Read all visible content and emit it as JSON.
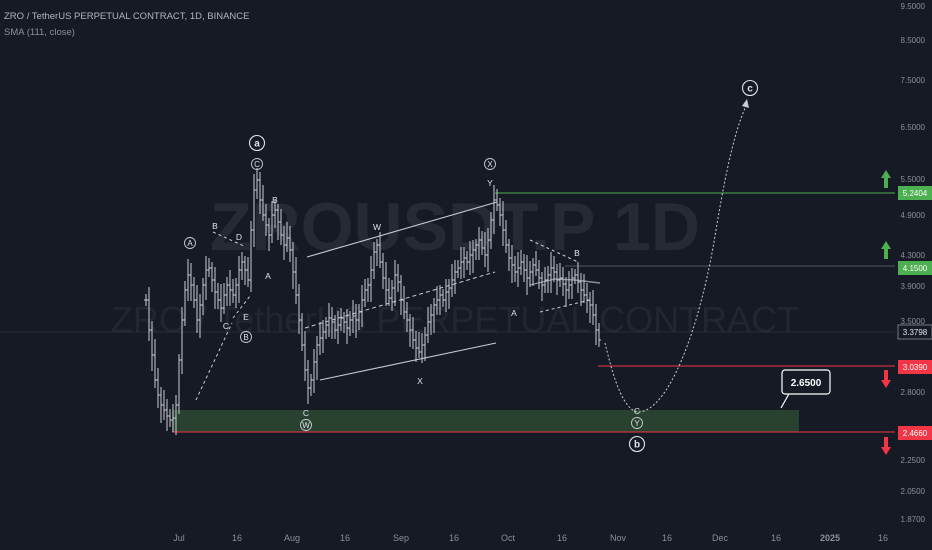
{
  "header": {
    "title": "ZRO / TetherUS PERPETUAL CONTRACT, 1D, BINANCE",
    "indicator": "SMA (111, close)"
  },
  "watermark": {
    "symbol": "ZROUSDT.P 1D",
    "description": "ZRO / TetherUS PERPETUAL CONTRACT"
  },
  "chart_data": {
    "type": "candlestick",
    "symbol": "ZROUSDT.P",
    "interval": "1D",
    "exchange": "BINANCE",
    "y_scale": "log",
    "ylim": [
      1.87,
      9.5
    ],
    "y_ticks": [
      "9.5000",
      "8.5000",
      "7.5000",
      "6.5000",
      "5.5000",
      "4.9000",
      "4.3000",
      "3.9000",
      "3.5000",
      "2.8000",
      "2.2500",
      "2.0500",
      "1.8700"
    ],
    "x_ticks": [
      "Jul",
      "16",
      "Aug",
      "16",
      "Sep",
      "16",
      "Oct",
      "16",
      "Nov",
      "16",
      "Dec",
      "16",
      "2025",
      "16"
    ],
    "last_price": "3.3798",
    "price_levels": [
      {
        "label": "5.2404",
        "value": 5.2404,
        "kind": "target",
        "color": "#4caf50"
      },
      {
        "label": "4.1500",
        "value": 4.15,
        "kind": "target",
        "color": "#4caf50"
      },
      {
        "label": "3.0390",
        "value": 3.039,
        "kind": "stop",
        "color": "#f23645"
      },
      {
        "label": "2.4660",
        "value": 2.466,
        "kind": "stop",
        "color": "#f23645"
      }
    ],
    "support_zone": {
      "low": 2.466,
      "high": 2.62,
      "color": "#2e4a33"
    },
    "projection_callout": "2.6500",
    "wave_labels": [
      "a",
      "C",
      "A",
      "B",
      "D",
      "E",
      "B",
      "C",
      "A",
      "B",
      "W",
      "C",
      "W",
      "X",
      "X",
      "Y",
      "A",
      "B",
      "C",
      "Y",
      "b",
      "c"
    ]
  },
  "colors": {
    "background": "#161a25",
    "candle": "#c9ccd3",
    "green": "#4caf50",
    "red": "#f23645",
    "axis_text": "#8b8f99"
  }
}
